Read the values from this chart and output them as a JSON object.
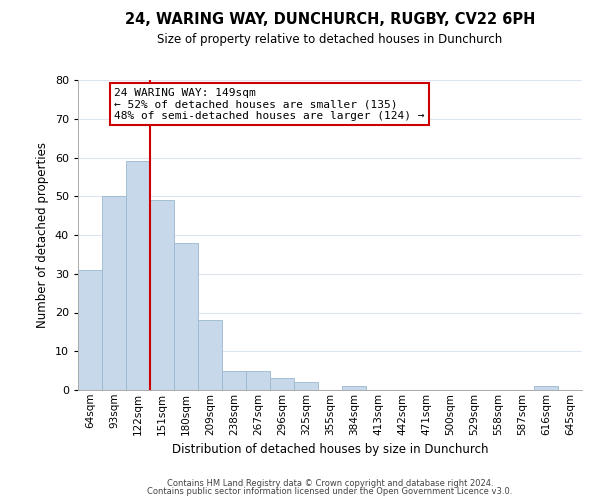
{
  "title": "24, WARING WAY, DUNCHURCH, RUGBY, CV22 6PH",
  "subtitle": "Size of property relative to detached houses in Dunchurch",
  "xlabel": "Distribution of detached houses by size in Dunchurch",
  "ylabel": "Number of detached properties",
  "bar_labels": [
    "64sqm",
    "93sqm",
    "122sqm",
    "151sqm",
    "180sqm",
    "209sqm",
    "238sqm",
    "267sqm",
    "296sqm",
    "325sqm",
    "355sqm",
    "384sqm",
    "413sqm",
    "442sqm",
    "471sqm",
    "500sqm",
    "529sqm",
    "558sqm",
    "587sqm",
    "616sqm",
    "645sqm"
  ],
  "bar_values": [
    31,
    50,
    59,
    49,
    38,
    18,
    5,
    5,
    3,
    2,
    0,
    1,
    0,
    0,
    0,
    0,
    0,
    0,
    0,
    1,
    0
  ],
  "bar_color": "#c6d8ea",
  "bar_edge_color": "#9ab8d0",
  "vline_x_index": 3,
  "vline_color": "#cc0000",
  "ylim": [
    0,
    80
  ],
  "yticks": [
    0,
    10,
    20,
    30,
    40,
    50,
    60,
    70,
    80
  ],
  "annotation_line1": "24 WARING WAY: 149sqm",
  "annotation_line2": "← 52% of detached houses are smaller (135)",
  "annotation_line3": "48% of semi-detached houses are larger (124) →",
  "annotation_box_color": "#ffffff",
  "annotation_box_edge": "#cc0000",
  "footer_line1": "Contains HM Land Registry data © Crown copyright and database right 2024.",
  "footer_line2": "Contains public sector information licensed under the Open Government Licence v3.0.",
  "background_color": "#ffffff",
  "grid_color": "#dde6f0"
}
